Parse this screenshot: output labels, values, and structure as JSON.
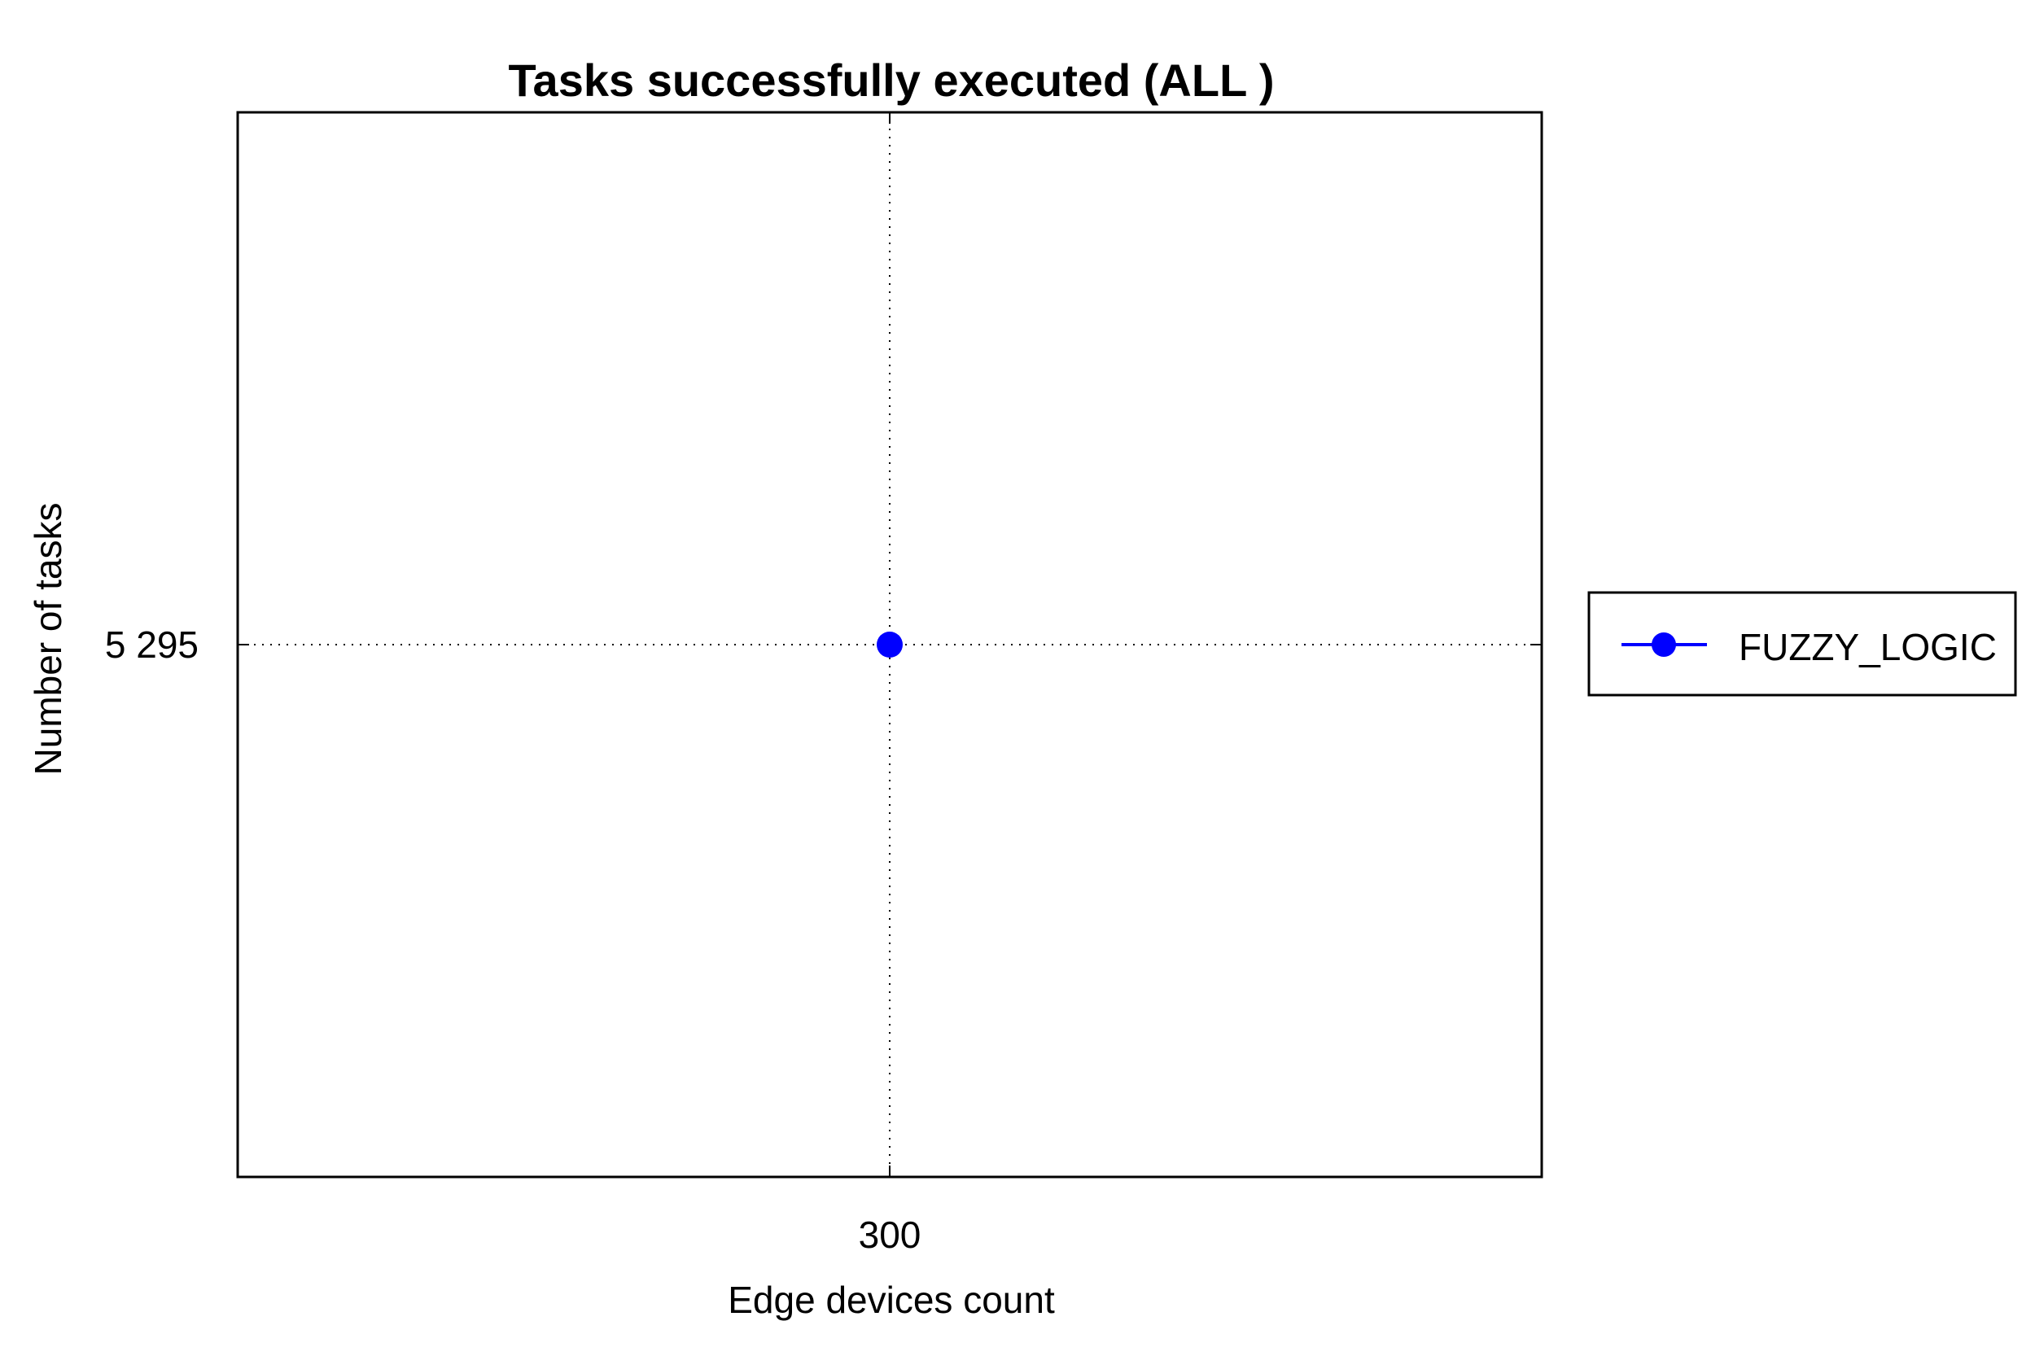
{
  "chart_data": {
    "type": "line",
    "title": "Tasks successfully executed (ALL )",
    "xlabel": "Edge devices count",
    "ylabel": "Number of tasks",
    "x_ticks": [
      300
    ],
    "x_tick_labels": [
      "300"
    ],
    "y_ticks": [
      5295
    ],
    "y_tick_labels": [
      "5 295"
    ],
    "xlim": [
      298,
      302
    ],
    "ylim": [
      5294,
      5296
    ],
    "grid": true,
    "legend_position": "right",
    "series": [
      {
        "name": "FUZZY_LOGIC",
        "color": "#0000ff",
        "marker": "circle",
        "x": [
          300
        ],
        "y": [
          5295
        ]
      }
    ]
  }
}
